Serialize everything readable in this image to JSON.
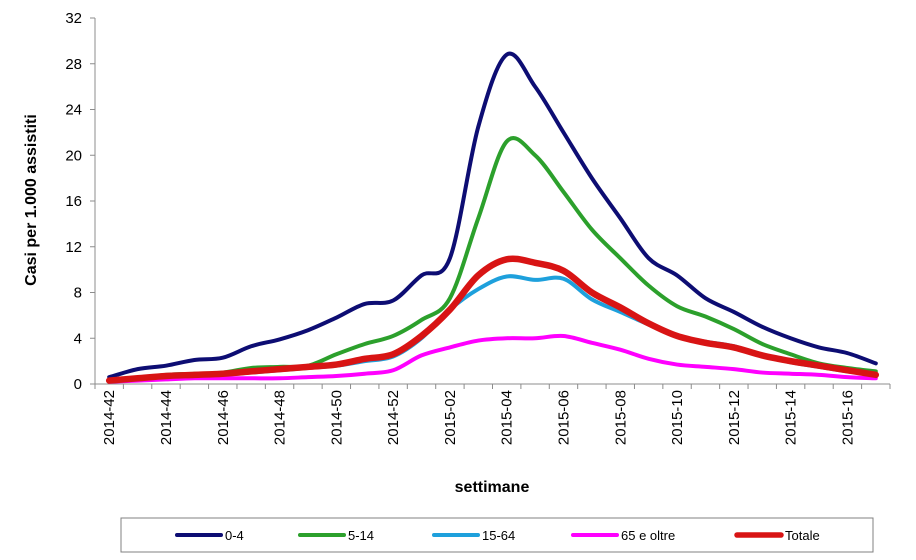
{
  "chart_data": {
    "type": "line",
    "xlabel": "settimane",
    "ylabel": "Casi per 1.000 assistiti",
    "ylim": [
      0,
      32
    ],
    "yticks": [
      0,
      4,
      8,
      12,
      16,
      20,
      24,
      28,
      32
    ],
    "grid": "none",
    "legend_position": "bottom",
    "categories": [
      "2014-42",
      "2014-43",
      "2014-44",
      "2014-45",
      "2014-46",
      "2014-47",
      "2014-48",
      "2014-49",
      "2014-50",
      "2014-51",
      "2014-52",
      "2015-01",
      "2015-02",
      "2015-03",
      "2015-04",
      "2015-05",
      "2015-06",
      "2015-07",
      "2015-08",
      "2015-09",
      "2015-10",
      "2015-11",
      "2015-12",
      "2015-13",
      "2015-14",
      "2015-15",
      "2015-16",
      "2015-17"
    ],
    "tick_labels": [
      "2014-42",
      "2014-44",
      "2014-46",
      "2014-48",
      "2014-50",
      "2014-52",
      "2015-02",
      "2015-04",
      "2015-06",
      "2015-08",
      "2015-10",
      "2015-12",
      "2015-14",
      "2015-16"
    ],
    "series": [
      {
        "name": "0-4",
        "color": "#0d0d73",
        "width": 4,
        "values": [
          0.6,
          1.3,
          1.6,
          2.1,
          2.3,
          3.3,
          3.9,
          4.7,
          5.8,
          7.0,
          7.3,
          9.5,
          11.0,
          22.5,
          28.8,
          26.0,
          22.0,
          18.0,
          14.5,
          11.0,
          9.5,
          7.5,
          6.3,
          5.0,
          4.0,
          3.2,
          2.7,
          1.8
        ]
      },
      {
        "name": "5-14",
        "color": "#2ca02c",
        "width": 4,
        "values": [
          0.3,
          0.5,
          0.8,
          0.9,
          1.0,
          1.4,
          1.5,
          1.6,
          2.6,
          3.5,
          4.2,
          5.6,
          7.5,
          14.5,
          21.2,
          20.0,
          16.8,
          13.5,
          11.0,
          8.6,
          6.8,
          5.9,
          4.8,
          3.5,
          2.6,
          1.8,
          1.4,
          1.1
        ]
      },
      {
        "name": "15-64",
        "color": "#1ea0dc",
        "width": 4,
        "values": [
          0.3,
          0.5,
          0.7,
          0.8,
          0.8,
          1.0,
          1.2,
          1.4,
          1.6,
          2.0,
          2.4,
          4.0,
          6.5,
          8.3,
          9.4,
          9.1,
          9.2,
          7.4,
          6.3,
          5.2,
          4.2,
          3.7,
          3.3,
          2.5,
          1.9,
          1.5,
          1.1,
          0.8
        ]
      },
      {
        "name": "65 e oltre",
        "color": "#ff00ff",
        "width": 4,
        "values": [
          0.2,
          0.3,
          0.4,
          0.5,
          0.5,
          0.5,
          0.5,
          0.6,
          0.7,
          0.9,
          1.2,
          2.5,
          3.2,
          3.8,
          4.0,
          4.0,
          4.2,
          3.6,
          3.0,
          2.2,
          1.7,
          1.5,
          1.3,
          1.0,
          0.9,
          0.8,
          0.6,
          0.5
        ]
      },
      {
        "name": "Totale",
        "color": "#d81414",
        "width": 6.5,
        "values": [
          0.3,
          0.5,
          0.7,
          0.8,
          0.9,
          1.1,
          1.3,
          1.5,
          1.7,
          2.2,
          2.6,
          4.2,
          6.5,
          9.5,
          10.9,
          10.6,
          9.9,
          8.0,
          6.7,
          5.3,
          4.2,
          3.6,
          3.2,
          2.5,
          2.0,
          1.6,
          1.2,
          0.8
        ]
      }
    ]
  }
}
